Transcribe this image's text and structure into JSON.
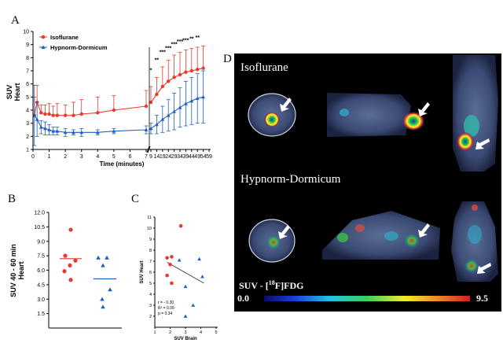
{
  "panels": {
    "a": "A",
    "b": "B",
    "c": "C",
    "d": "D"
  },
  "colors": {
    "iso": "#e8392c",
    "hyp": "#1f5fc4",
    "axis": "#000000"
  },
  "chart_data": [
    {
      "id": "A",
      "type": "line",
      "title": "",
      "ylabel_line1": "SUV",
      "ylabel_line2": "Heart",
      "xlabel": "Time (minutes)",
      "ylim": [
        1,
        10
      ],
      "yticks": [
        "1",
        "2",
        "3",
        "4",
        "5",
        "6",
        "7",
        "8",
        "9",
        "10"
      ],
      "xticks_left": [
        "0",
        "1",
        "2",
        "3",
        "4",
        "5",
        "6",
        "7"
      ],
      "xticks_right": [
        "9",
        "14",
        "19",
        "24",
        "29",
        "34",
        "39",
        "44",
        "49",
        "54",
        "59"
      ],
      "xticks_right_shown": [
        "9",
        "14",
        "19",
        "24",
        "29",
        "34",
        "39",
        "44",
        "49",
        "54",
        "59"
      ],
      "xticks_labels_shown": [
        "0",
        "1",
        "2",
        "3",
        "4",
        "5",
        "6",
        "7",
        "9",
        "14",
        "19",
        "24",
        "29",
        "34",
        "39",
        "44",
        "49",
        "54",
        "59"
      ],
      "legend": [
        "Isoflurane",
        "Hypnorm-Dormicum"
      ],
      "legend_position": "top-left",
      "significance_marks": [
        "*",
        "**",
        "***",
        "***",
        "***",
        "***",
        "***",
        "**",
        "**"
      ],
      "series": [
        {
          "name": "Isoflurane",
          "x": [
            0.083,
            0.25,
            0.5,
            0.75,
            1,
            1.25,
            1.5,
            2,
            2.5,
            3,
            4,
            5,
            7,
            9,
            14,
            19,
            24,
            29,
            34,
            39,
            44,
            49,
            54
          ],
          "y": [
            3.6,
            4.6,
            3.8,
            3.7,
            3.7,
            3.6,
            3.6,
            3.6,
            3.6,
            3.7,
            3.8,
            4.0,
            4.3,
            4.6,
            5.2,
            5.8,
            6.2,
            6.5,
            6.7,
            6.9,
            7.0,
            7.1,
            7.2
          ],
          "err": [
            1.4,
            1.3,
            0.6,
            0.7,
            0.8,
            0.7,
            0.9,
            0.8,
            1.0,
            1.1,
            1.2,
            1.1,
            1.2,
            1.2,
            1.3,
            1.5,
            1.6,
            1.7,
            1.7,
            1.7,
            1.7,
            1.7,
            1.7
          ]
        },
        {
          "name": "Hypnorm-Dormicum",
          "x": [
            0.083,
            0.25,
            0.5,
            0.75,
            1,
            1.25,
            1.5,
            2,
            2.5,
            3,
            4,
            5,
            7,
            9,
            14,
            19,
            24,
            29,
            34,
            39,
            44,
            49,
            54
          ],
          "y": [
            3.6,
            3.3,
            2.7,
            2.6,
            2.5,
            2.4,
            2.4,
            2.3,
            2.3,
            2.3,
            2.3,
            2.4,
            2.5,
            2.6,
            2.9,
            3.3,
            3.6,
            3.9,
            4.2,
            4.5,
            4.7,
            4.9,
            5.0
          ],
          "err": [
            2.3,
            1.3,
            0.5,
            0.5,
            0.4,
            0.3,
            0.3,
            0.3,
            0.2,
            0.3,
            0.2,
            0.2,
            0.3,
            0.4,
            0.7,
            1.0,
            1.2,
            1.4,
            1.5,
            1.7,
            1.8,
            1.9,
            2.0
          ]
        }
      ]
    },
    {
      "id": "B",
      "type": "scatter",
      "ylabel_line1": "SUV 40 - 60 min",
      "ylabel_line2": "Heart",
      "xlabel": "",
      "ylim": [
        0,
        12
      ],
      "yticks": [
        "1.5",
        "3.0",
        "4.5",
        "6.0",
        "7.5",
        "9.0",
        "10.5",
        "12.0"
      ],
      "groups": [
        {
          "name": "Isoflurane",
          "marker": "circle",
          "values": [
            10.2,
            7.5,
            7.0,
            6.5,
            5.9,
            5.0
          ],
          "mean": 7.2
        },
        {
          "name": "Hypnorm-Dormicum",
          "marker": "triangle",
          "values": [
            7.3,
            7.3,
            6.5,
            4.0,
            3.0,
            2.2
          ],
          "mean": 5.1
        }
      ]
    },
    {
      "id": "C",
      "type": "scatter",
      "ylabel": "SUV Heart",
      "xlabel": "SUV Brain",
      "xlim": [
        1,
        5
      ],
      "ylim": [
        1,
        11
      ],
      "xticks": [
        "1",
        "2",
        "3",
        "4",
        "5"
      ],
      "yticks": [
        "2",
        "3",
        "4",
        "5",
        "6",
        "7",
        "8",
        "9",
        "10",
        "11"
      ],
      "stats": [
        "r = - 0.30",
        "R² = 0.09",
        "p = 0.34"
      ],
      "points_isoflurane": [
        [
          2.7,
          10.2
        ],
        [
          1.8,
          7.3
        ],
        [
          2.1,
          7.4
        ],
        [
          2.0,
          6.7
        ],
        [
          1.8,
          5.7
        ],
        [
          2.1,
          5.0
        ]
      ],
      "points_hypnorm": [
        [
          2.6,
          7.1
        ],
        [
          3.9,
          7.2
        ],
        [
          3.0,
          4.7
        ],
        [
          4.1,
          5.6
        ],
        [
          3.5,
          3.0
        ],
        [
          3.0,
          2.0
        ]
      ],
      "regression": {
        "x": [
          1.8,
          4.2
        ],
        "y": [
          6.9,
          5.0
        ]
      }
    }
  ],
  "pet": {
    "iso_label": "Isoflurane",
    "hyp_label": "Hypnorm-Dormicum",
    "scale_prefix": "SUV  - [",
    "scale_sup": "18",
    "scale_suffix": "F]FDG",
    "scale_min": "0.0",
    "scale_max": "9.5"
  }
}
